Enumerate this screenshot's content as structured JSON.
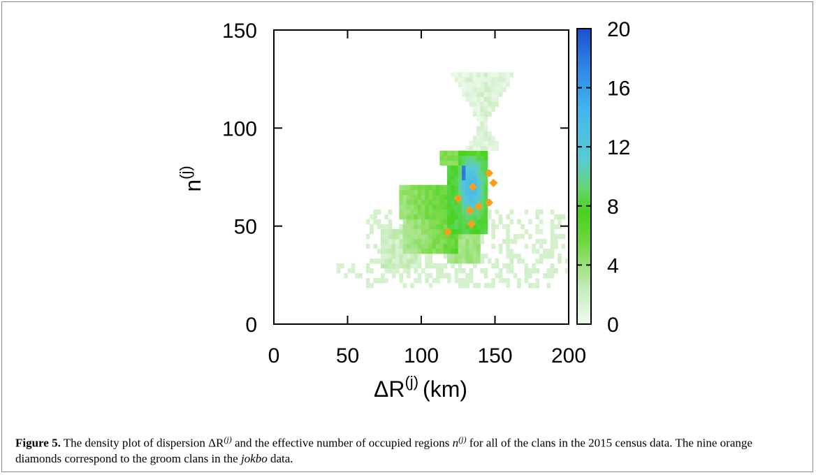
{
  "chart_data": {
    "type": "heatmap",
    "xlabel": "ΔR(j) (km)",
    "xlabel_main": "ΔR",
    "xlabel_sup": "(j)",
    "xlabel_unit": "(km)",
    "ylabel_main": "n",
    "ylabel_sup": "(j)",
    "xlim": [
      0,
      200
    ],
    "ylim": [
      0,
      150
    ],
    "x_ticks": [
      "0",
      "50",
      "100",
      "150",
      "200"
    ],
    "y_ticks": [
      "0",
      "50",
      "100",
      "150"
    ],
    "colorbar": {
      "range": [
        0,
        20
      ],
      "ticks": [
        "0",
        "4",
        "8",
        "12",
        "16",
        "20"
      ],
      "colors": [
        "#f0faf0",
        "#cfeecb",
        "#8fe064",
        "#4fd21e",
        "#66d468",
        "#54c8d8",
        "#40b2ec",
        "#2e86e4",
        "#1c52d4"
      ]
    },
    "density_regions": [
      {
        "x": [
          128,
          158
        ],
        "y": [
          110,
          128
        ],
        "level": 0.6,
        "note": "upper funnel"
      },
      {
        "x": [
          134,
          150
        ],
        "y": [
          88,
          110
        ],
        "level": 0.8
      },
      {
        "x": [
          112,
          145
        ],
        "y": [
          80,
          88
        ],
        "level": 4.5
      },
      {
        "x": [
          118,
          145
        ],
        "y": [
          48,
          80
        ],
        "level": 6
      },
      {
        "x": [
          85,
          140
        ],
        "y": [
          55,
          70
        ],
        "level": 3.5
      },
      {
        "x": [
          70,
          120
        ],
        "y": [
          30,
          55
        ],
        "level": 2
      },
      {
        "x": [
          127,
          140
        ],
        "y": [
          60,
          85
        ],
        "level": 11
      },
      {
        "x": [
          128,
          132
        ],
        "y": [
          75,
          80
        ],
        "level": 18
      }
    ],
    "series": [
      {
        "name": "groom clans (jokbo)",
        "type": "scatter",
        "marker": "diamond",
        "color": "#ff9c1a",
        "points": [
          {
            "x": 118,
            "y": 47
          },
          {
            "x": 125,
            "y": 64
          },
          {
            "x": 133,
            "y": 58
          },
          {
            "x": 134,
            "y": 51
          },
          {
            "x": 135,
            "y": 70
          },
          {
            "x": 139,
            "y": 60
          },
          {
            "x": 146,
            "y": 77
          },
          {
            "x": 146,
            "y": 62
          },
          {
            "x": 149,
            "y": 72
          }
        ]
      }
    ]
  },
  "caption": {
    "label": "Figure 5.",
    "text_1": " The density plot of dispersion ΔR",
    "sup_1": "(j)",
    "text_2": " and the effective number of occupied regions ",
    "var_2": "n",
    "sup_2": "(j)",
    "text_3": " for all of the clans in the 2015 census data. The nine orange diamonds correspond to the groom clans in the ",
    "italic": "jokbo",
    "text_4": " data."
  }
}
